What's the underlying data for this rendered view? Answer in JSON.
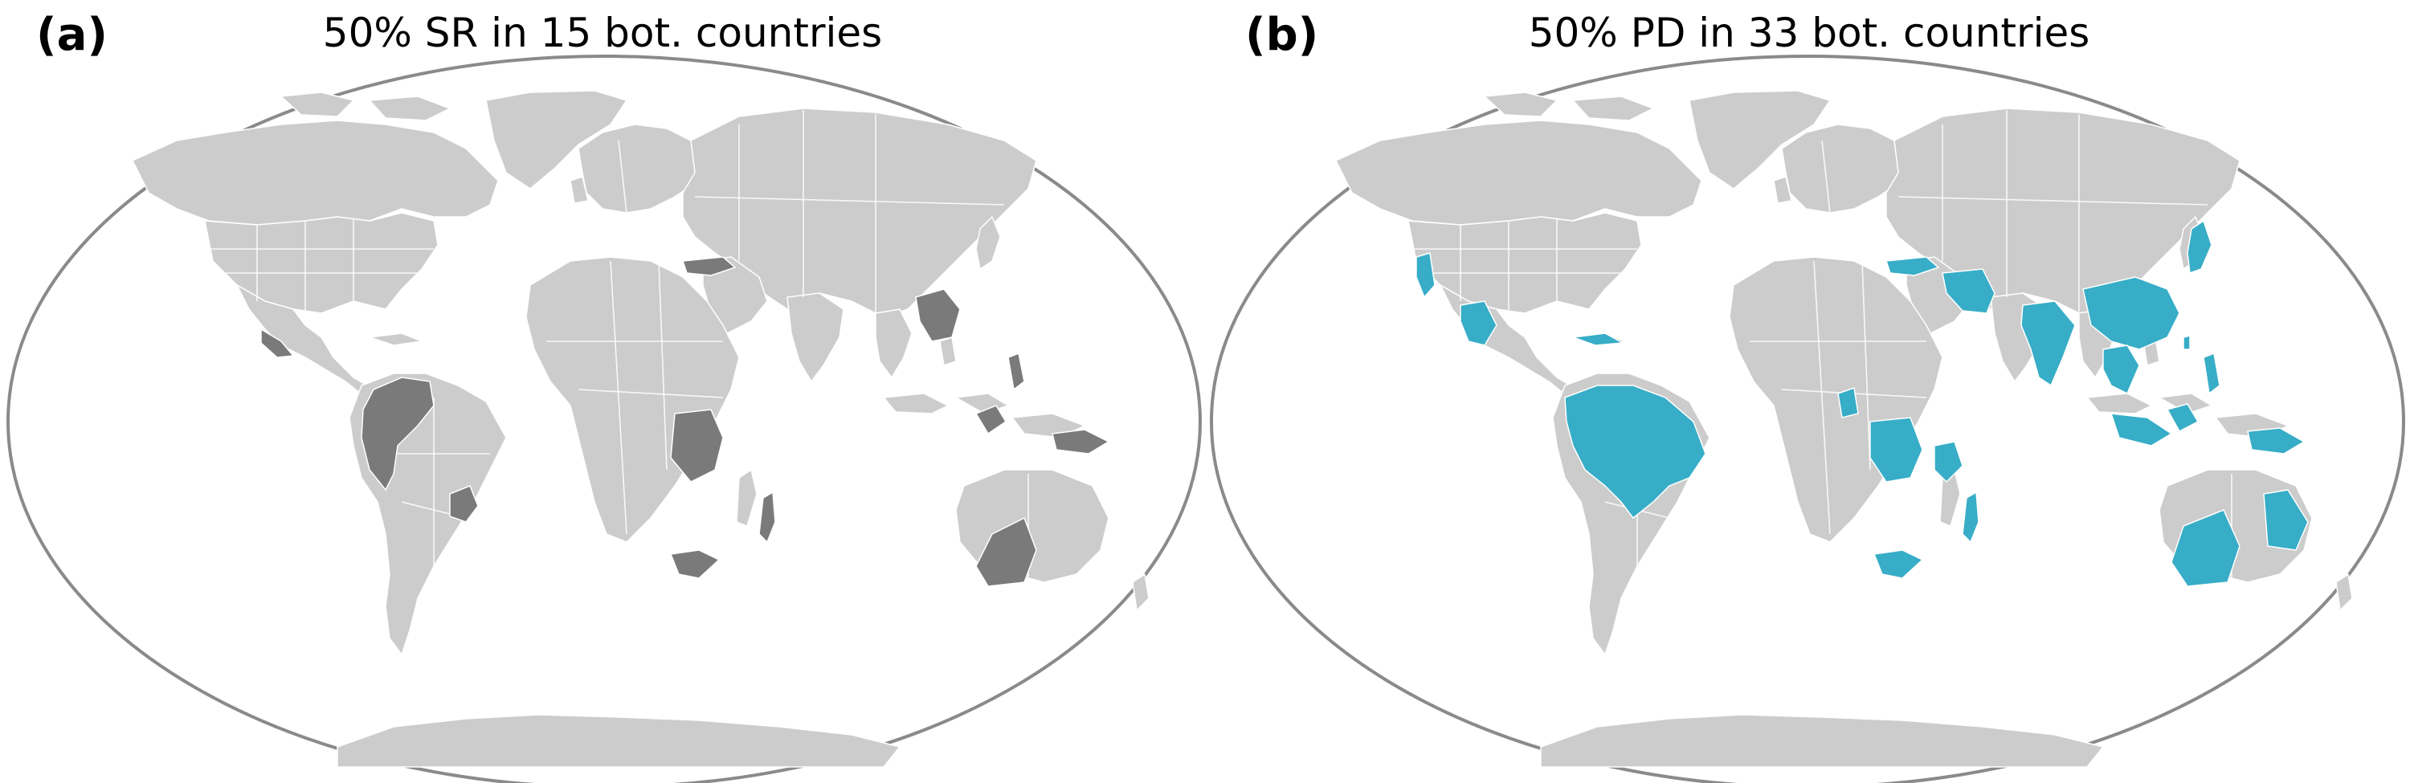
{
  "panels": [
    {
      "letter": "(a)",
      "title": "50% SR in 15 bot. countries",
      "highlight_color": "#7a7a7a",
      "highlighted_countries": [
        "Mexico",
        "Colombia",
        "Ecuador",
        "Peru",
        "Venezuela",
        "Brazil-southeast",
        "Turkey",
        "China-central",
        "Vietnam",
        "Philippines",
        "Malaysia",
        "Papua New Guinea",
        "DR Congo",
        "Madagascar",
        "South Africa",
        "Australia-west"
      ]
    },
    {
      "letter": "(b)",
      "title": "50% PD in 33 bot. countries",
      "highlight_color": "#37adc7",
      "highlighted_countries": [
        "USA-California",
        "Mexico",
        "Cuba",
        "Colombia",
        "Ecuador",
        "Peru",
        "Venezuela",
        "Guyana",
        "Suriname",
        "Brazil",
        "Bolivia",
        "Turkey",
        "Iran",
        "India",
        "China",
        "Japan",
        "Taiwan",
        "Thailand",
        "Vietnam",
        "Laos",
        "Cambodia",
        "Philippines",
        "Malaysia",
        "Indonesia",
        "Papua New Guinea",
        "Cameroon",
        "DR Congo",
        "Tanzania",
        "Madagascar",
        "South Africa",
        "Australia"
      ]
    }
  ],
  "colors": {
    "land": "#cccccc",
    "borders": "#ffffff",
    "map_frame": "#8a8a8a",
    "background": "#ffffff"
  }
}
